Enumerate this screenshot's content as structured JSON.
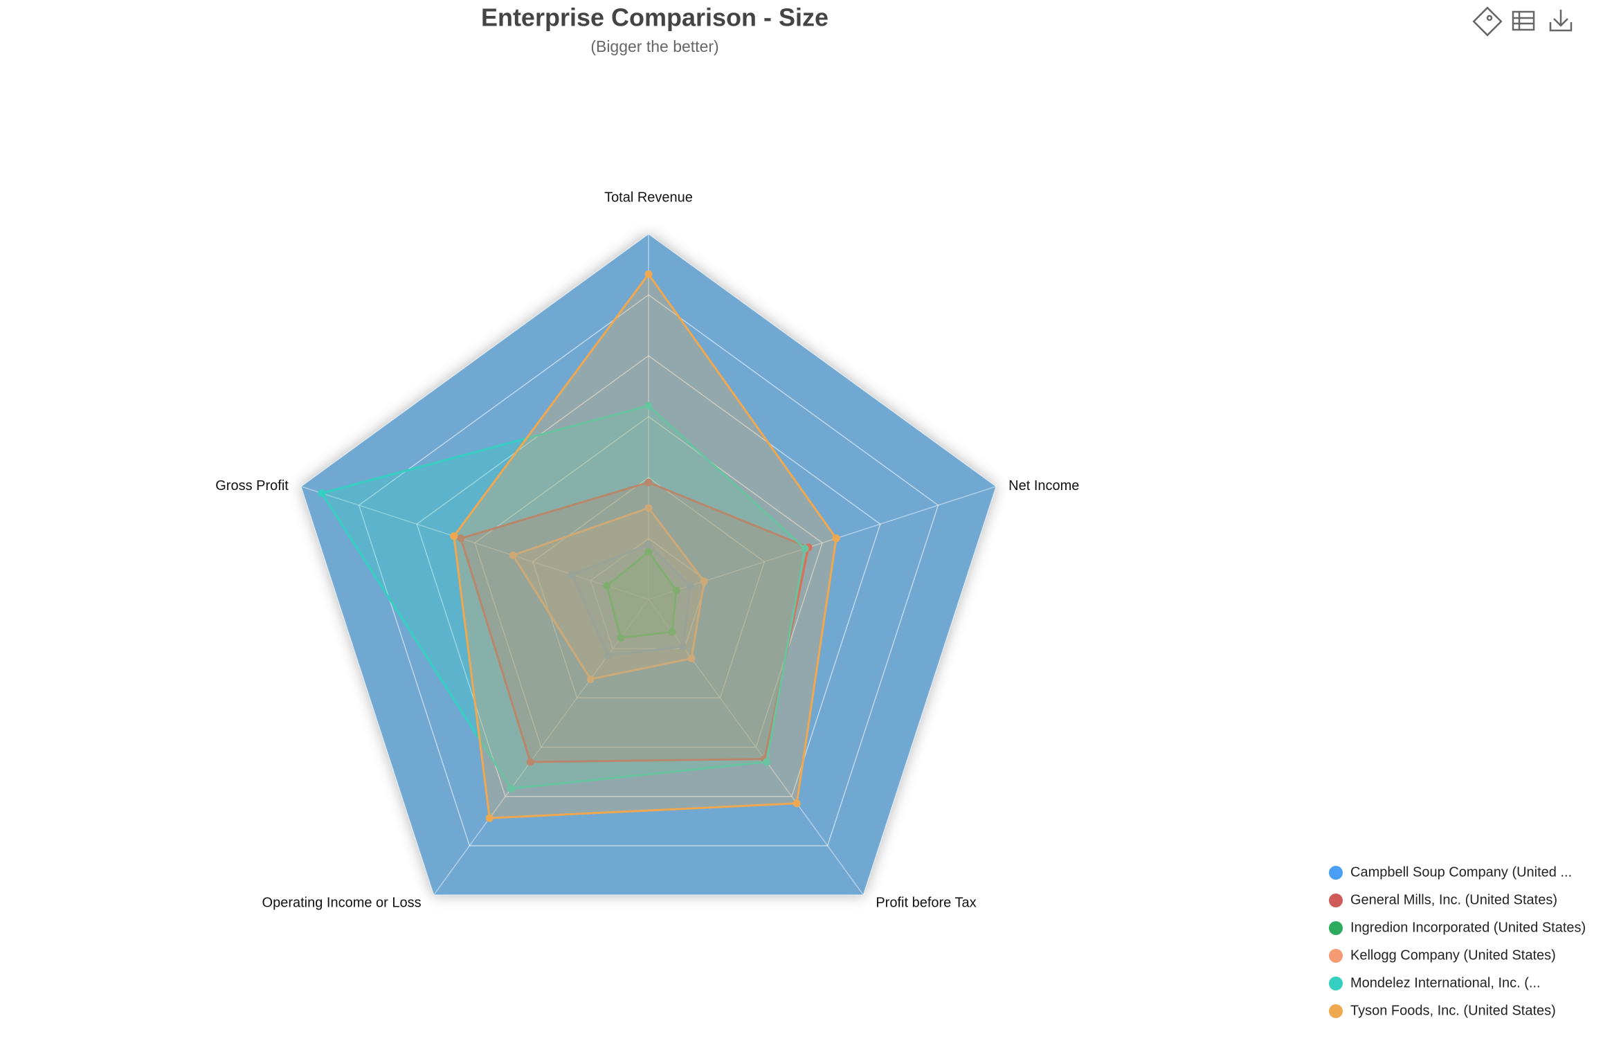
{
  "chart_data": {
    "type": "radar",
    "title": "Enterprise Comparison - Size",
    "subtitle": "(Bigger the better)",
    "indicators": [
      "Total Revenue",
      "Net Income",
      "Profit before Tax",
      "Operating Income or Loss",
      "Gross Profit"
    ],
    "rlim": [
      0,
      100
    ],
    "split_number": 6,
    "area_color": "#6fa8d2",
    "series": [
      {
        "name": "Campbell Soup Company (United ...",
        "color": "#4a9ff5",
        "values": [
          15,
          12,
          16,
          19,
          22
        ]
      },
      {
        "name": "General Mills, Inc. (United States)",
        "color": "#d05a5a",
        "values": [
          32,
          46,
          54,
          55,
          54
        ]
      },
      {
        "name": "Ingredion Incorporated (United States)",
        "color": "#2eaa5f",
        "values": [
          13,
          8,
          11,
          13,
          12
        ]
      },
      {
        "name": "Kellogg Company (United States)",
        "color": "#f59a72",
        "values": [
          25,
          16,
          20,
          27,
          39
        ]
      },
      {
        "name": "Mondelez International, Inc. (...",
        "color": "#34cfc0",
        "values": [
          53,
          45,
          55,
          64,
          94
        ]
      },
      {
        "name": "Tyson Foods, Inc. (United States)",
        "color": "#f0a850",
        "values": [
          89,
          54,
          69,
          74,
          56
        ]
      }
    ]
  }
}
